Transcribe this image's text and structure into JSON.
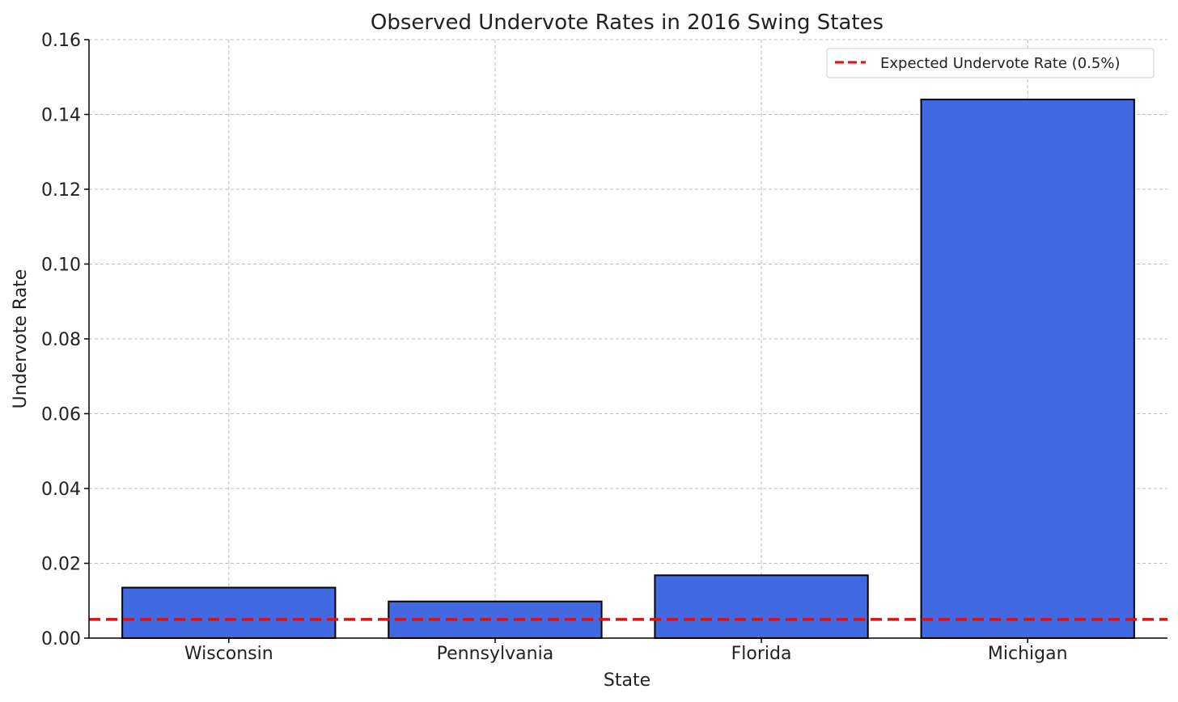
{
  "chart_data": {
    "type": "bar",
    "title": "Observed Undervote Rates in 2016 Swing States",
    "xlabel": "State",
    "ylabel": "Undervote Rate",
    "categories": [
      "Wisconsin",
      "Pennsylvania",
      "Florida",
      "Michigan"
    ],
    "values": [
      0.0135,
      0.0098,
      0.0168,
      0.144
    ],
    "ylim": [
      0,
      0.16
    ],
    "yticks": [
      "0.00",
      "0.02",
      "0.04",
      "0.06",
      "0.08",
      "0.10",
      "0.12",
      "0.14",
      "0.16"
    ],
    "reference_line": {
      "label": "Expected Undervote Rate (0.5%)",
      "value": 0.005,
      "color": "#dd1111",
      "style": "dashed"
    },
    "bar_color": "#4169e1",
    "bar_edge_color": "#000000",
    "grid": true,
    "legend_position": "top-right"
  }
}
